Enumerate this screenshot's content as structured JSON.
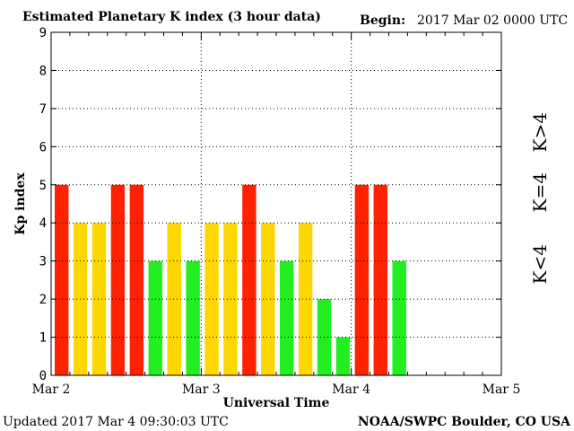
{
  "chart_data": {
    "type": "bar",
    "title": "Estimated Planetary K index (3 hour data)",
    "begin_label": "Begin:",
    "begin_value": "2017 Mar 02 0000 UTC",
    "xlabel": "Universal Time",
    "ylabel": "Kp index",
    "ylim": [
      0,
      9
    ],
    "yticks": [
      "0",
      "1",
      "2",
      "3",
      "4",
      "5",
      "6",
      "7",
      "8",
      "9"
    ],
    "xticks": [
      "Mar 2",
      "Mar 3",
      "Mar 4",
      "Mar 5"
    ],
    "slots_per_day": 8,
    "days": 3,
    "values": [
      5,
      4,
      4,
      5,
      5,
      3,
      4,
      3,
      4,
      4,
      5,
      4,
      3,
      4,
      2,
      1,
      5,
      5,
      3
    ],
    "grid": true,
    "legend": [
      {
        "label": "K>4",
        "color": "#ff2200"
      },
      {
        "label": "K=4",
        "color": "#ffd700"
      },
      {
        "label": "K<4",
        "color": "#22ee22"
      }
    ]
  },
  "footer": {
    "updated": "Updated 2017 Mar  4 09:30:03 UTC",
    "source": "NOAA/SWPC Boulder, CO USA"
  }
}
